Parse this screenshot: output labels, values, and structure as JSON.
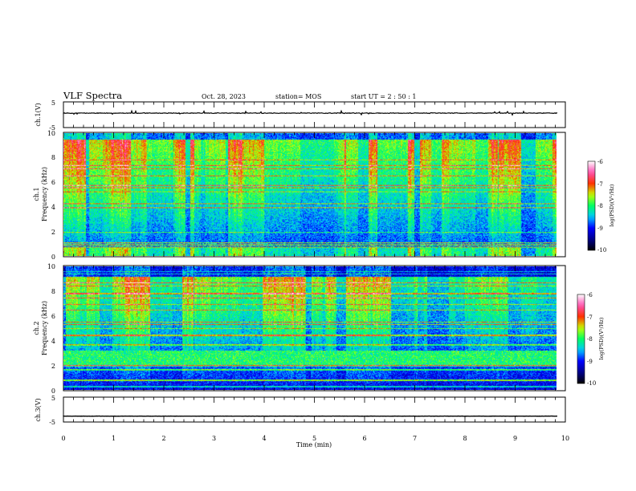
{
  "header": {
    "title": "VLF Spectra",
    "date": "Oct. 28, 2023",
    "station": "station= MOS",
    "start": "start  UT =   2 : 50 : 1"
  },
  "colors": {
    "colormap": [
      "#000000",
      "#00008c",
      "#0000ff",
      "#00c8ff",
      "#00ff64",
      "#c8ff00",
      "#ff3200",
      "#ff50b4",
      "#ffffff"
    ],
    "trace": "#000000",
    "frame": "#000000",
    "background": "#ffffff"
  },
  "chart_data": [
    {
      "id": "ch1-waveform",
      "type": "line",
      "ylabel": "ch.1(V)",
      "ylim": [
        -5,
        5
      ],
      "yticks": [
        "5",
        "-5"
      ],
      "xlim": [
        0,
        10
      ],
      "series": [
        {
          "values_description_level": 0
        }
      ]
    },
    {
      "id": "ch1-spectrogram",
      "type": "heatmap",
      "ylabel_channel": "ch.1",
      "ylabel": "Frequency (kHz)",
      "ylim": [
        0,
        10
      ],
      "yticks": [
        "0",
        "2",
        "4",
        "6",
        "8",
        "10"
      ],
      "xlim": [
        0,
        10
      ],
      "colorbar": {
        "label": "log(PSD)(V²/Hz)",
        "range": [
          -10,
          -6
        ],
        "ticks": [
          "-6",
          "-7",
          "-8",
          "-9",
          "-10"
        ]
      }
    },
    {
      "id": "ch2-spectrogram",
      "type": "heatmap",
      "ylabel_channel": "ch.2",
      "ylabel": "Frequency (kHz)",
      "ylim": [
        0,
        10
      ],
      "yticks": [
        "0",
        "2",
        "4",
        "6",
        "8",
        "10"
      ],
      "xlim": [
        0,
        10
      ],
      "colorbar": {
        "label": "log(PSD)(V²/Hz)",
        "range": [
          -10,
          -6
        ],
        "ticks": [
          "-6",
          "-7",
          "-8",
          "-9",
          "-10"
        ]
      }
    },
    {
      "id": "ch3-waveform",
      "type": "line",
      "ylabel": "ch.3(V)",
      "ylim": [
        -5,
        5
      ],
      "yticks": [
        "5",
        "-5"
      ],
      "xlim": [
        0,
        10
      ],
      "xlabel": "Time (min)",
      "xticks": [
        "0",
        "1",
        "2",
        "3",
        "4",
        "5",
        "6",
        "7",
        "8",
        "9",
        "10"
      ],
      "series": [
        {
          "level": -2
        }
      ]
    }
  ],
  "layout_hints": {
    "data_end_min": 9.85
  }
}
